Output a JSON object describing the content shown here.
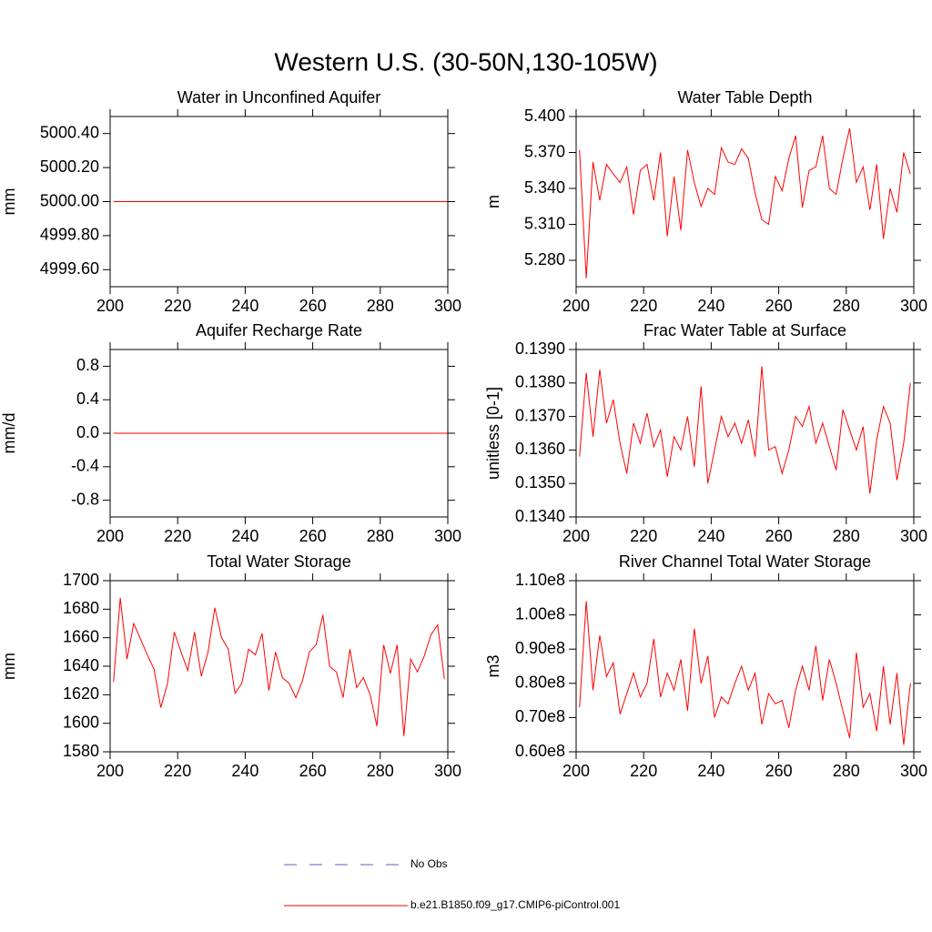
{
  "title": "Western U.S. (30-50N,130-105W)",
  "legend": [
    {
      "name": "No Obs",
      "color": "#5566bb",
      "dash": "14 14"
    },
    {
      "name": "b.e21.B1850.f09_g17.CMIP6-piControl.001",
      "color": "#ff0000",
      "dash": "none"
    }
  ],
  "chart_data": [
    {
      "type": "line",
      "title": "Water in Unconfined Aquifer",
      "ylabel": "mm",
      "color": "#ff0000",
      "xlim": [
        200,
        300
      ],
      "xticks": [
        200,
        220,
        240,
        260,
        280,
        300
      ],
      "ylim": [
        4999.5,
        5000.5
      ],
      "yticks": [
        {
          "value": 4999.6,
          "label": "4999.60"
        },
        {
          "value": 4999.8,
          "label": "4999.80"
        },
        {
          "value": 5000.0,
          "label": "5000.00"
        },
        {
          "value": 5000.2,
          "label": "5000.20"
        },
        {
          "value": 5000.4,
          "label": "5000.40"
        }
      ],
      "x": [
        201,
        300
      ],
      "values": [
        5000,
        5000
      ]
    },
    {
      "type": "line",
      "title": "Water Table Depth",
      "ylabel": "m",
      "color": "#ff0000",
      "xlim": [
        200,
        300
      ],
      "xticks": [
        200,
        220,
        240,
        260,
        280,
        300
      ],
      "ylim": [
        5.258,
        5.4
      ],
      "yticks": [
        {
          "value": 5.28,
          "label": "5.280"
        },
        {
          "value": 5.31,
          "label": "5.310"
        },
        {
          "value": 5.34,
          "label": "5.340"
        },
        {
          "value": 5.37,
          "label": "5.370"
        },
        {
          "value": 5.4,
          "label": "5.400"
        }
      ],
      "x": [
        201,
        203,
        205,
        207,
        209,
        211,
        213,
        215,
        217,
        219,
        221,
        223,
        225,
        227,
        229,
        231,
        233,
        235,
        237,
        239,
        241,
        243,
        245,
        247,
        249,
        251,
        253,
        255,
        257,
        259,
        261,
        263,
        265,
        267,
        269,
        271,
        273,
        275,
        277,
        279,
        281,
        283,
        285,
        287,
        289,
        291,
        293,
        295,
        297,
        299
      ],
      "values": [
        5.372,
        5.265,
        5.362,
        5.33,
        5.36,
        5.352,
        5.345,
        5.358,
        5.318,
        5.355,
        5.36,
        5.33,
        5.37,
        5.3,
        5.35,
        5.305,
        5.372,
        5.345,
        5.325,
        5.34,
        5.335,
        5.374,
        5.362,
        5.36,
        5.373,
        5.365,
        5.336,
        5.314,
        5.31,
        5.35,
        5.338,
        5.365,
        5.384,
        5.324,
        5.355,
        5.358,
        5.384,
        5.34,
        5.335,
        5.365,
        5.39,
        5.345,
        5.358,
        5.322,
        5.36,
        5.298,
        5.34,
        5.32,
        5.37,
        5.352
      ]
    },
    {
      "type": "line",
      "title": "Aquifer Recharge Rate",
      "ylabel": "mm/d",
      "color": "#ff0000",
      "xlim": [
        200,
        300
      ],
      "xticks": [
        200,
        220,
        240,
        260,
        280,
        300
      ],
      "ylim": [
        -1,
        1
      ],
      "yticks": [
        -0.8,
        -0.4,
        {
          "value": 0,
          "label": "0.0"
        },
        0.4,
        0.8
      ],
      "x": [
        201,
        300
      ],
      "values": [
        0,
        0
      ]
    },
    {
      "type": "line",
      "title": "Frac Water Table at Surface",
      "ylabel": "unitless [0-1]",
      "color": "#ff0000",
      "xlim": [
        200,
        300
      ],
      "xticks": [
        200,
        220,
        240,
        260,
        280,
        300
      ],
      "ylim": [
        0.134,
        0.139
      ],
      "yticks": [
        {
          "value": 0.134,
          "label": "0.1340"
        },
        {
          "value": 0.135,
          "label": "0.1350"
        },
        {
          "value": 0.136,
          "label": "0.1360"
        },
        {
          "value": 0.137,
          "label": "0.1370"
        },
        {
          "value": 0.138,
          "label": "0.1380"
        },
        {
          "value": 0.139,
          "label": "0.1390"
        }
      ],
      "x": [
        201,
        203,
        205,
        207,
        209,
        211,
        213,
        215,
        217,
        219,
        221,
        223,
        225,
        227,
        229,
        231,
        233,
        235,
        237,
        239,
        241,
        243,
        245,
        247,
        249,
        251,
        253,
        255,
        257,
        259,
        261,
        263,
        265,
        267,
        269,
        271,
        273,
        275,
        277,
        279,
        281,
        283,
        285,
        287,
        289,
        291,
        293,
        295,
        297,
        299
      ],
      "values": [
        0.1358,
        0.1383,
        0.1364,
        0.1384,
        0.1368,
        0.1375,
        0.1362,
        0.1353,
        0.1368,
        0.1362,
        0.1371,
        0.1361,
        0.1366,
        0.1352,
        0.1364,
        0.136,
        0.137,
        0.1355,
        0.1379,
        0.135,
        0.136,
        0.137,
        0.1364,
        0.1368,
        0.1362,
        0.1369,
        0.1358,
        0.1385,
        0.136,
        0.1361,
        0.1353,
        0.136,
        0.137,
        0.1367,
        0.1373,
        0.1362,
        0.1368,
        0.1361,
        0.1354,
        0.1372,
        0.1366,
        0.136,
        0.1367,
        0.1347,
        0.1363,
        0.1373,
        0.1368,
        0.1351,
        0.1362,
        0.138
      ]
    },
    {
      "type": "line",
      "title": "Total Water Storage",
      "ylabel": "mm",
      "color": "#ff0000",
      "xlim": [
        200,
        300
      ],
      "xticks": [
        200,
        220,
        240,
        260,
        280,
        300
      ],
      "ylim": [
        1580,
        1700
      ],
      "yticks": [
        1580,
        1600,
        1620,
        1640,
        1660,
        1680,
        1700
      ],
      "x": [
        201,
        203,
        205,
        207,
        209,
        211,
        213,
        215,
        217,
        219,
        221,
        223,
        225,
        227,
        229,
        231,
        233,
        235,
        237,
        239,
        241,
        243,
        245,
        247,
        249,
        251,
        253,
        255,
        257,
        259,
        261,
        263,
        265,
        267,
        269,
        271,
        273,
        275,
        277,
        279,
        281,
        283,
        285,
        287,
        289,
        291,
        293,
        295,
        297,
        299
      ],
      "values": [
        1629,
        1688,
        1645,
        1670,
        1659,
        1648,
        1638,
        1611,
        1628,
        1664,
        1650,
        1637,
        1664,
        1633,
        1650,
        1681,
        1660,
        1652,
        1621,
        1628,
        1652,
        1648,
        1663,
        1623,
        1650,
        1632,
        1628,
        1618,
        1630,
        1650,
        1655,
        1676,
        1640,
        1636,
        1618,
        1652,
        1625,
        1632,
        1620,
        1598,
        1655,
        1635,
        1655,
        1591,
        1645,
        1636,
        1647,
        1662,
        1669,
        1631
      ]
    },
    {
      "type": "line",
      "title": "River Channel Total Water Storage",
      "ylabel": "m3",
      "color": "#ff0000",
      "xlim": [
        200,
        300
      ],
      "xticks": [
        200,
        220,
        240,
        260,
        280,
        300
      ],
      "ylim": [
        60000000,
        110000000
      ],
      "yticks": [
        {
          "value": 60000000,
          "label": "0.60e8"
        },
        {
          "value": 70000000,
          "label": "0.70e8"
        },
        {
          "value": 80000000,
          "label": "0.80e8"
        },
        {
          "value": 90000000,
          "label": "0.90e8"
        },
        {
          "value": 100000000,
          "label": "1.00e8"
        },
        {
          "value": 110000000,
          "label": "1.10e8"
        }
      ],
      "x": [
        201,
        203,
        205,
        207,
        209,
        211,
        213,
        215,
        217,
        219,
        221,
        223,
        225,
        227,
        229,
        231,
        233,
        235,
        237,
        239,
        241,
        243,
        245,
        247,
        249,
        251,
        253,
        255,
        257,
        259,
        261,
        263,
        265,
        267,
        269,
        271,
        273,
        275,
        277,
        279,
        281,
        283,
        285,
        287,
        289,
        291,
        293,
        295,
        297,
        299
      ],
      "values": [
        73000000,
        104000000,
        78000000,
        94000000,
        82000000,
        86000000,
        71000000,
        77000000,
        83000000,
        76000000,
        80000000,
        93000000,
        76000000,
        83000000,
        78000000,
        87000000,
        72000000,
        96000000,
        80000000,
        88000000,
        70000000,
        76000000,
        74000000,
        80000000,
        85000000,
        78000000,
        83000000,
        68000000,
        77000000,
        74000000,
        75000000,
        67000000,
        78000000,
        85000000,
        78000000,
        91000000,
        75000000,
        87000000,
        80000000,
        72000000,
        64000000,
        89000000,
        73000000,
        77000000,
        66000000,
        85000000,
        68000000,
        83000000,
        62000000,
        80000000
      ]
    }
  ]
}
